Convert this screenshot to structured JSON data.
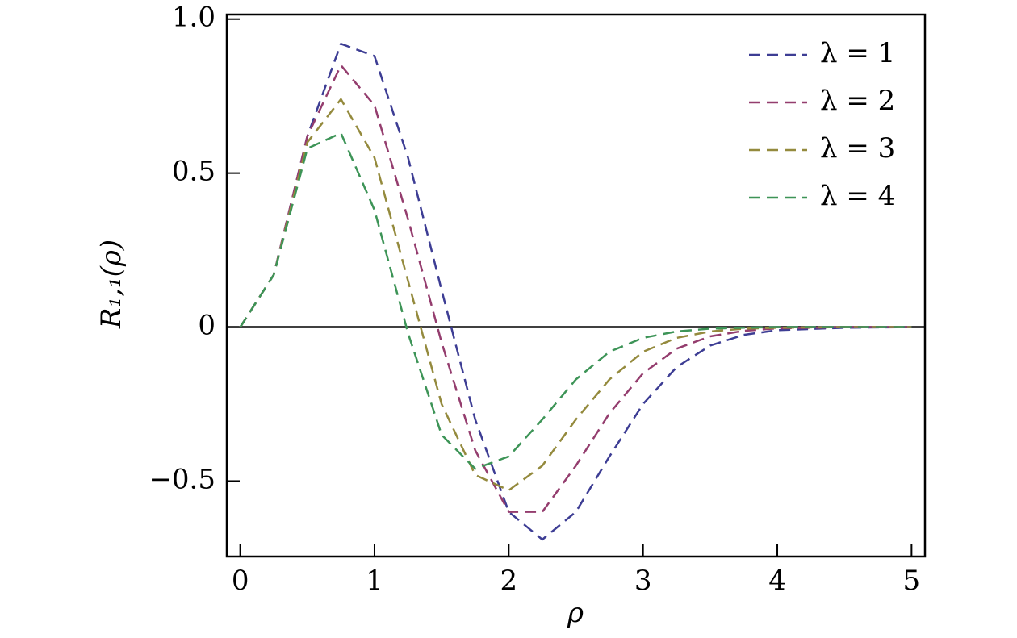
{
  "chart_data": {
    "type": "line",
    "xlabel": "ρ",
    "ylabel": "R₁,₁(ρ)",
    "x": [
      0,
      0.25,
      0.5,
      0.75,
      1,
      1.25,
      1.5,
      1.75,
      2,
      2.25,
      2.5,
      2.75,
      3,
      3.25,
      3.5,
      3.75,
      4,
      4.5,
      5
    ],
    "series": [
      {
        "name": "λ = 1",
        "color": "#3d3d94",
        "values": [
          0,
          0.17,
          0.62,
          0.92,
          0.88,
          0.55,
          0.12,
          -0.3,
          -0.6,
          -0.69,
          -0.6,
          -0.42,
          -0.25,
          -0.13,
          -0.06,
          -0.025,
          -0.01,
          -0.002,
          0
        ]
      },
      {
        "name": "λ = 2",
        "color": "#943d6e",
        "values": [
          0,
          0.17,
          0.62,
          0.85,
          0.72,
          0.35,
          -0.05,
          -0.4,
          -0.6,
          -0.6,
          -0.45,
          -0.28,
          -0.15,
          -0.07,
          -0.03,
          -0.012,
          -0.004,
          0,
          0
        ]
      },
      {
        "name": "λ = 3",
        "color": "#948a3d",
        "values": [
          0,
          0.17,
          0.6,
          0.74,
          0.55,
          0.15,
          -0.25,
          -0.48,
          -0.53,
          -0.45,
          -0.3,
          -0.17,
          -0.08,
          -0.035,
          -0.014,
          -0.005,
          -0.002,
          0,
          0
        ]
      },
      {
        "name": "λ = 4",
        "color": "#3d9457",
        "values": [
          0,
          0.17,
          0.58,
          0.63,
          0.38,
          -0.02,
          -0.35,
          -0.46,
          -0.42,
          -0.3,
          -0.17,
          -0.08,
          -0.035,
          -0.014,
          -0.005,
          -0.002,
          0,
          0,
          0
        ]
      }
    ],
    "xlim": [
      -0.1,
      5.1
    ],
    "xticks": [
      0,
      1,
      2,
      3,
      4,
      5
    ],
    "ylim": [
      -0.745,
      1.015
    ],
    "yticks": [
      {
        "value": -0.5,
        "label": "−0.5"
      },
      0,
      0.5,
      {
        "value": 1,
        "label": "1.0"
      }
    ],
    "hline": 0,
    "legend": "upper right",
    "dashed": true
  }
}
